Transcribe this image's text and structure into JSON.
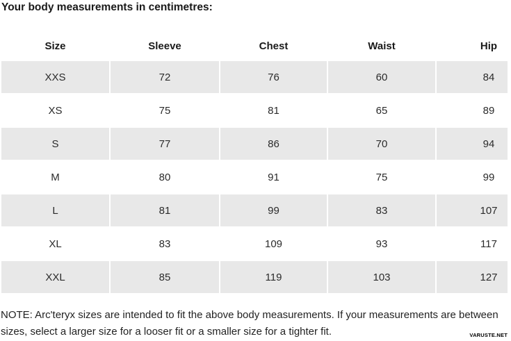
{
  "title": "Your body measurements in centimetres:",
  "table": {
    "columns": [
      "Size",
      "Sleeve",
      "Chest",
      "Waist",
      "Hip"
    ],
    "rows": [
      [
        "XXS",
        "72",
        "76",
        "60",
        "84"
      ],
      [
        "XS",
        "75",
        "81",
        "65",
        "89"
      ],
      [
        "S",
        "77",
        "86",
        "70",
        "94"
      ],
      [
        "M",
        "80",
        "91",
        "75",
        "99"
      ],
      [
        "L",
        "81",
        "99",
        "83",
        "107"
      ],
      [
        "XL",
        "83",
        "109",
        "93",
        "117"
      ],
      [
        "XXL",
        "85",
        "119",
        "103",
        "127"
      ]
    ]
  },
  "note": "NOTE: Arc'teryx sizes are intended to fit the above body measurements. If your measurements are between sizes, select a larger size for a looser fit or a smaller size for a tighter fit.",
  "watermark": "VARUSTE.NET",
  "colors": {
    "stripe": "#e8e8e8",
    "heading_text": "#1a1a1a",
    "body_text": "#2b2b2b"
  }
}
